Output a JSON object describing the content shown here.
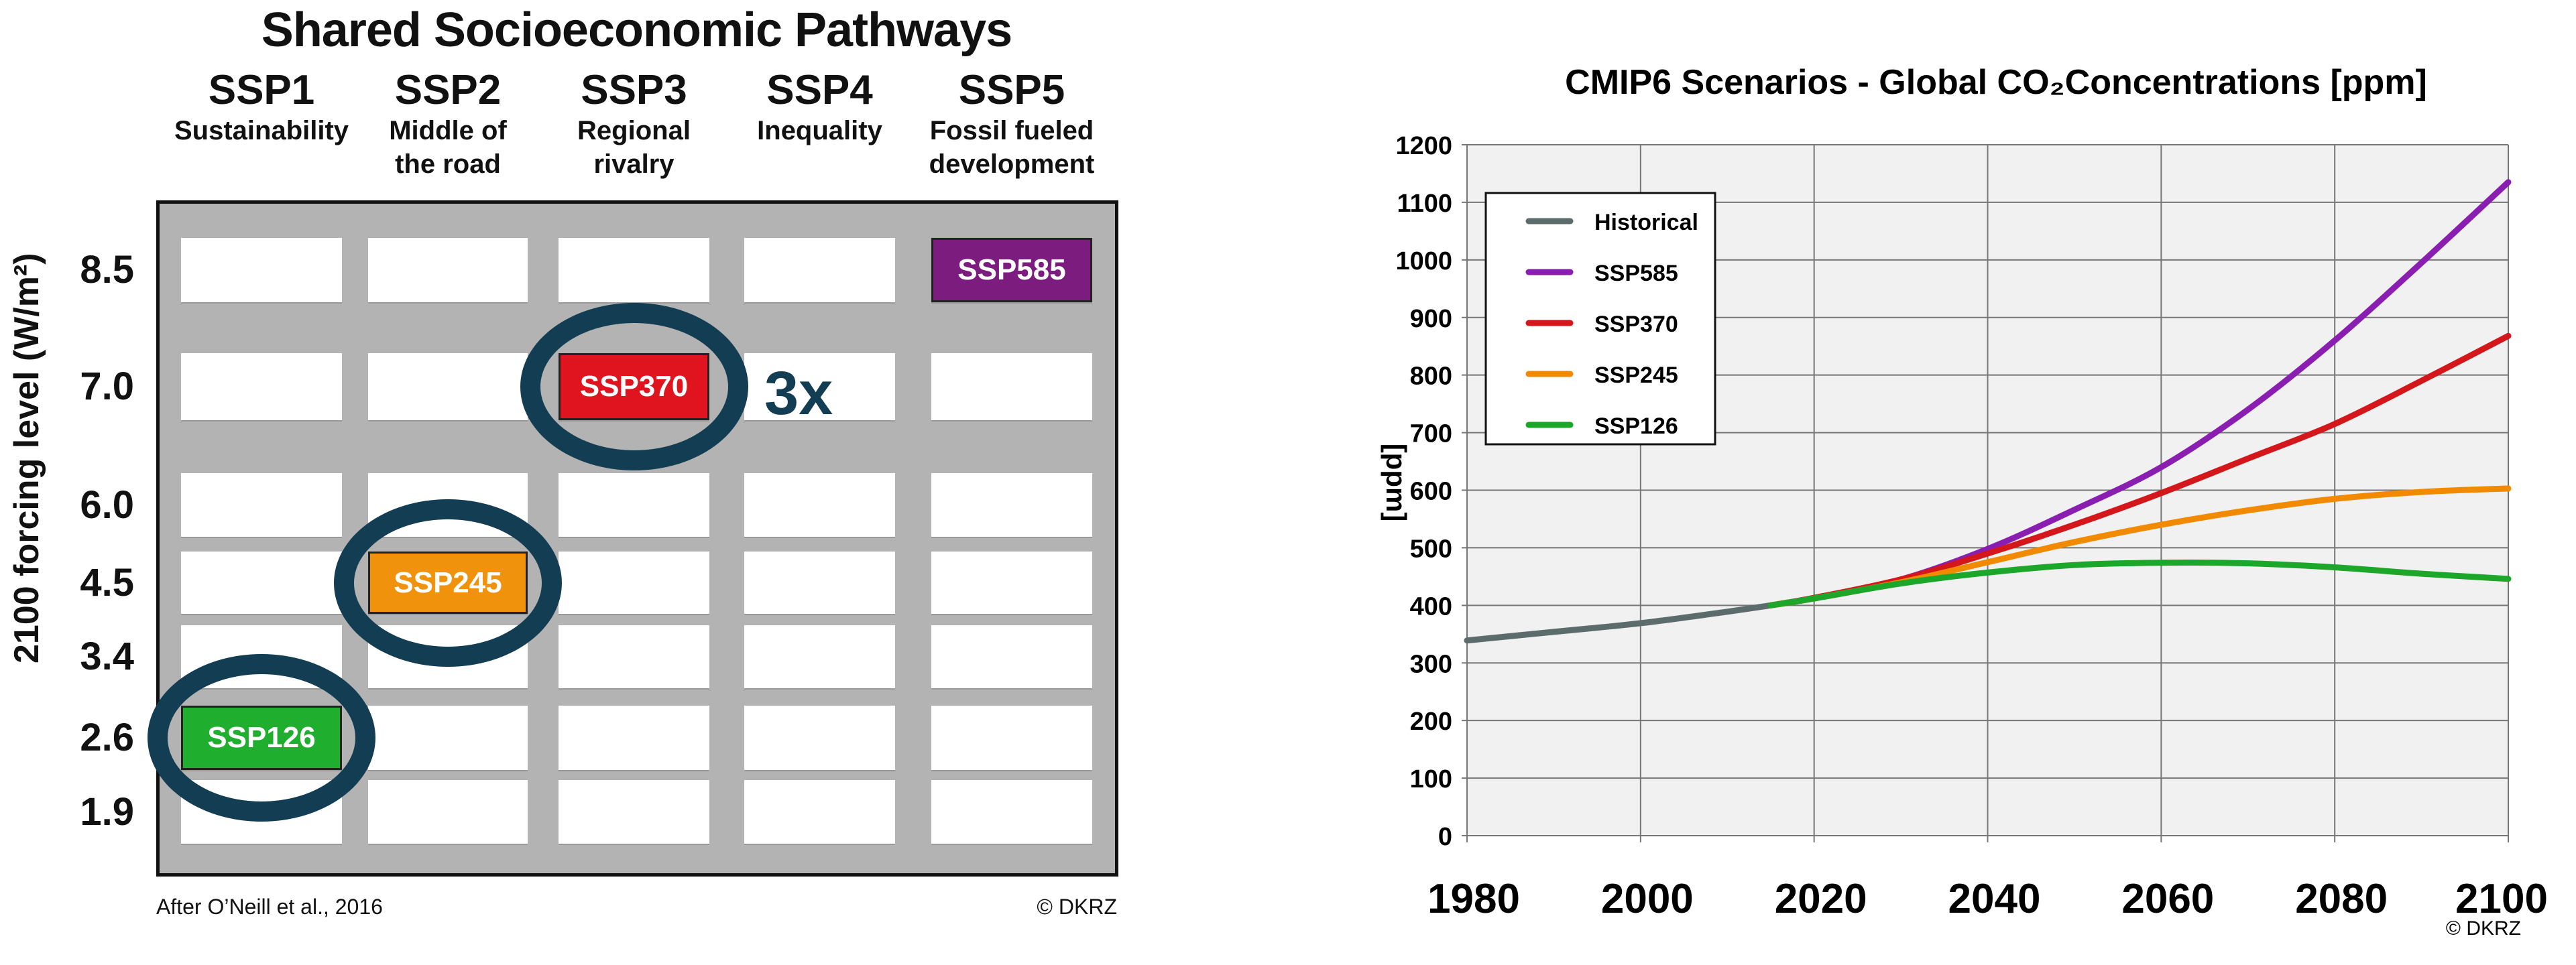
{
  "left_panel": {
    "title": "Shared Socioeconomic Pathways",
    "columns": [
      {
        "name": "SSP1",
        "subtitle": [
          "Sustainability"
        ]
      },
      {
        "name": "SSP2",
        "subtitle": [
          "Middle of",
          "the road"
        ]
      },
      {
        "name": "SSP3",
        "subtitle": [
          "Regional",
          "rivalry"
        ]
      },
      {
        "name": "SSP4",
        "subtitle": [
          "Inequality"
        ]
      },
      {
        "name": "SSP5",
        "subtitle": [
          "Fossil fueled",
          "development"
        ]
      }
    ],
    "rows": [
      "8.5",
      "7.0",
      "6.0",
      "4.5",
      "3.4",
      "2.6",
      "1.9"
    ],
    "y_axis_label": "2100 forcing level (W/m²)",
    "highlighted": [
      {
        "label": "SSP585",
        "col": 4,
        "row": 0,
        "color": "#7b1c7e",
        "circled": false
      },
      {
        "label": "SSP370",
        "col": 2,
        "row": 1,
        "color": "#e0141e",
        "circled": true
      },
      {
        "label": "SSP245",
        "col": 1,
        "row": 3,
        "color": "#f0920c",
        "circled": true
      },
      {
        "label": "SSP126",
        "col": 0,
        "row": 5,
        "color": "#1fae2e",
        "circled": true
      }
    ],
    "annotation": "3x",
    "source": "After O’Neill et al., 2016",
    "copyright": "© DKRZ"
  },
  "chart_data": {
    "type": "line",
    "title": "CMIP6 Scenarios  -  Global CO₂Concentrations [ppm]",
    "xlabel": "",
    "ylabel": "[ppm]",
    "xlim": [
      1980,
      2100
    ],
    "ylim": [
      0,
      1200
    ],
    "xticks": [
      1980,
      2000,
      2020,
      2040,
      2060,
      2080,
      2100
    ],
    "yticks": [
      0,
      100,
      200,
      300,
      400,
      500,
      600,
      700,
      800,
      900,
      1000,
      1100,
      1200
    ],
    "grid": true,
    "legend_position": "top-left",
    "series": [
      {
        "name": "Historical",
        "color": "#5c6b6b",
        "x": [
          1980,
          1990,
          2000,
          2010,
          2015
        ],
        "y": [
          339,
          354,
          369,
          389,
          400
        ]
      },
      {
        "name": "SSP585",
        "color": "#8a1eb0",
        "x": [
          2015,
          2020,
          2030,
          2040,
          2050,
          2060,
          2070,
          2080,
          2090,
          2100
        ],
        "y": [
          400,
          413,
          445,
          498,
          566,
          640,
          740,
          860,
          995,
          1135
        ]
      },
      {
        "name": "SSP370",
        "color": "#d3171b",
        "x": [
          2015,
          2020,
          2030,
          2040,
          2050,
          2060,
          2070,
          2080,
          2090,
          2100
        ],
        "y": [
          400,
          413,
          445,
          490,
          540,
          595,
          655,
          715,
          790,
          868
        ]
      },
      {
        "name": "SSP245",
        "color": "#f28a00",
        "x": [
          2015,
          2020,
          2030,
          2040,
          2050,
          2060,
          2070,
          2080,
          2090,
          2100
        ],
        "y": [
          400,
          412,
          440,
          475,
          510,
          540,
          565,
          585,
          597,
          603
        ]
      },
      {
        "name": "SSP126",
        "color": "#1ca62a",
        "x": [
          2015,
          2020,
          2030,
          2040,
          2050,
          2060,
          2070,
          2080,
          2090,
          2100
        ],
        "y": [
          400,
          412,
          438,
          457,
          470,
          474,
          473,
          466,
          455,
          446
        ]
      }
    ],
    "copyright": "© DKRZ"
  }
}
